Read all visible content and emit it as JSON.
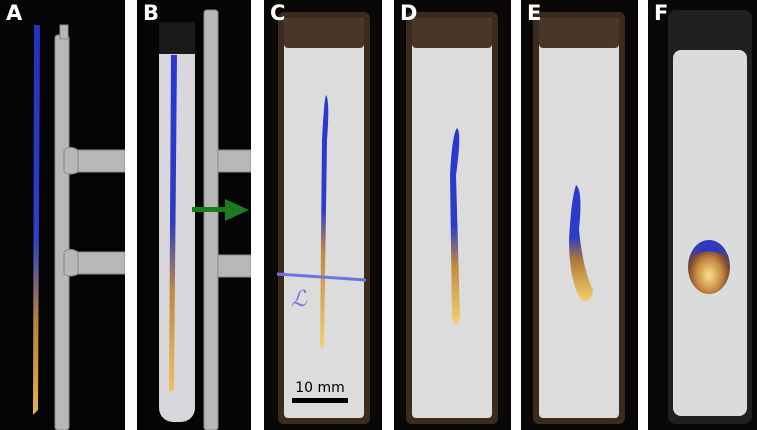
{
  "panels": [
    {
      "label": "A"
    },
    {
      "label": "B"
    },
    {
      "label": "C"
    },
    {
      "label": "D"
    },
    {
      "label": "E"
    },
    {
      "label": "F"
    }
  ],
  "annotations": {
    "line_symbol": "ℒ",
    "scale_bar_label": "10 mm"
  },
  "colors": {
    "frame_dark": "#0a0806",
    "cell_fill": "#dcdcdc",
    "cell_frame": "#3a2b1c",
    "metal": "#b5b5b5",
    "stripe_blue": "#2030b8",
    "stripe_gold": "#e0a040",
    "arrow_green": "#1e7a1e",
    "line_blue": "#6f72e0"
  }
}
